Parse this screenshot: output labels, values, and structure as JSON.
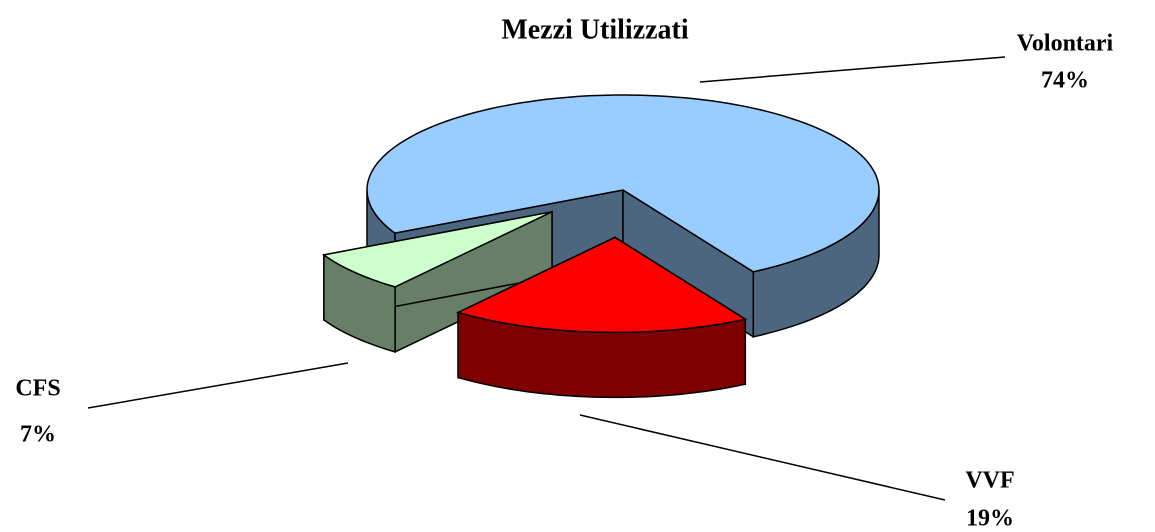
{
  "chart_data": {
    "type": "pie",
    "title": "Mezzi Utilizzati",
    "categories": [
      "Volontari",
      "VVF",
      "CFS"
    ],
    "values": [
      74,
      19,
      7
    ],
    "value_labels": [
      "74%",
      "19%",
      "7%"
    ],
    "colors": [
      "#99ccff",
      "#ff0000",
      "#ccffcc"
    ]
  }
}
